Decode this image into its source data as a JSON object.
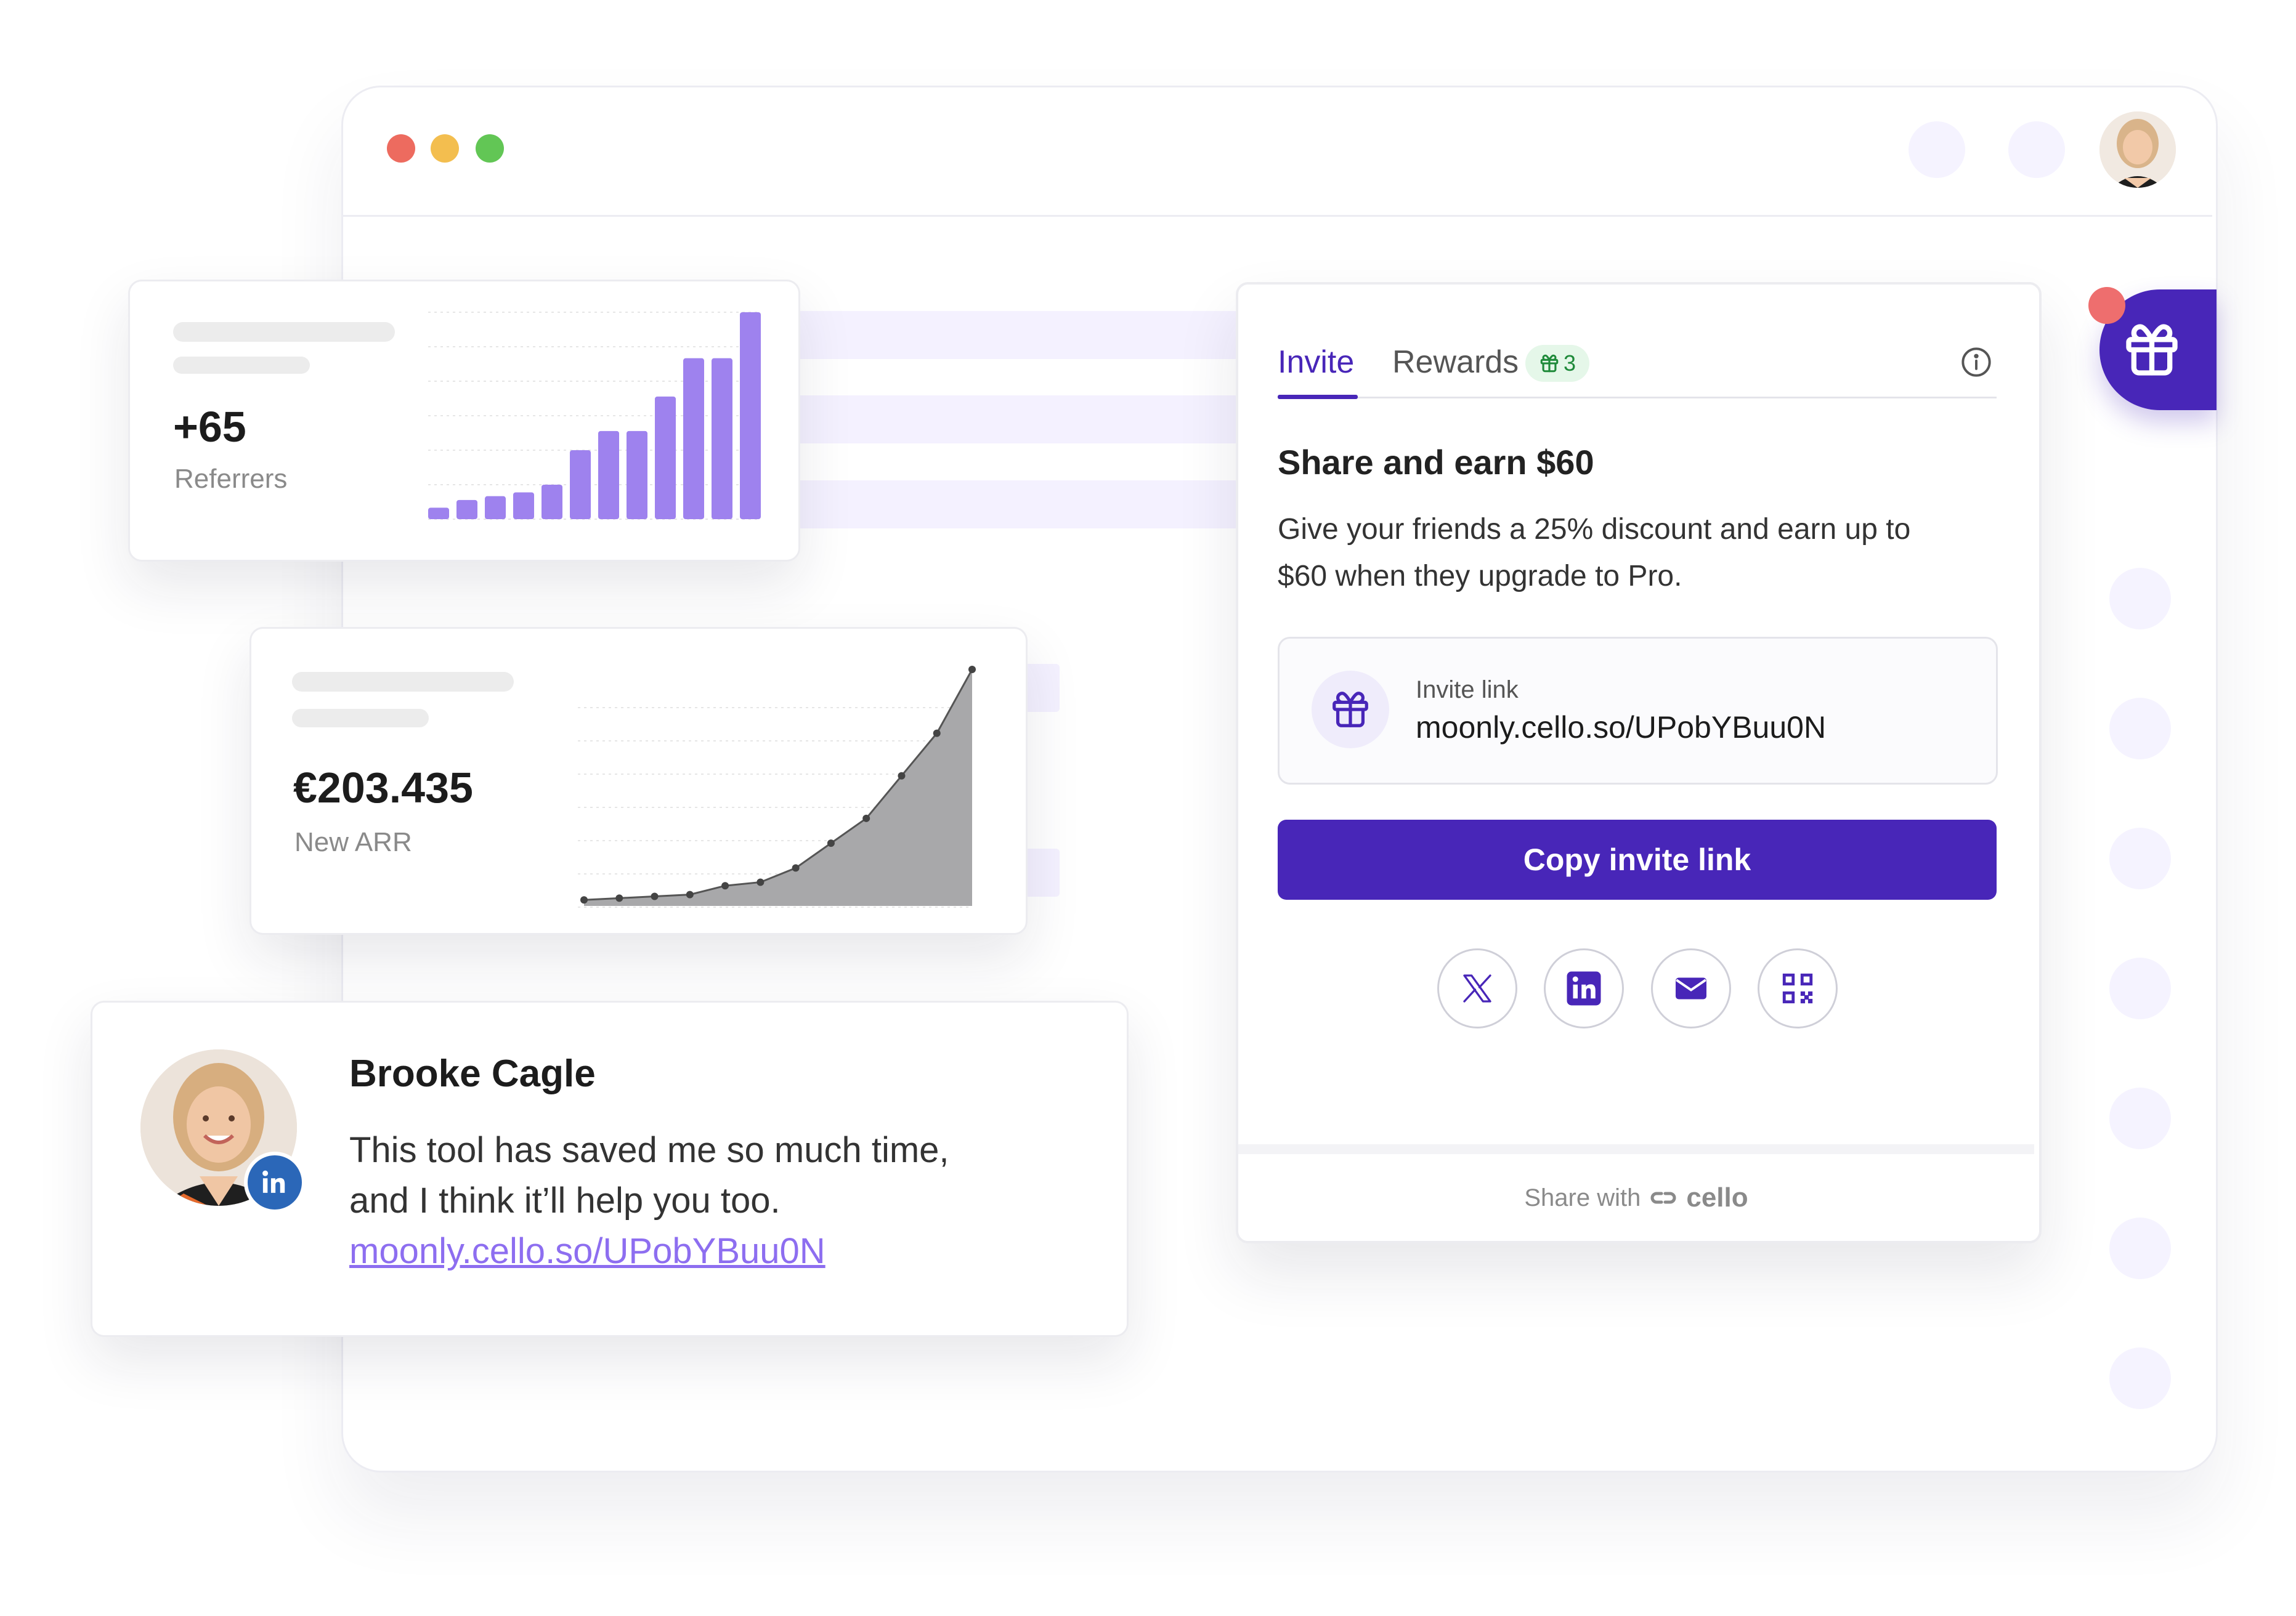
{
  "window": {
    "traffic_lights": {
      "close": "#ed6b5f",
      "minimize": "#f3be4f",
      "maximize": "#62c655"
    }
  },
  "referrers_card": {
    "value": "+65",
    "label": "Referrers",
    "chart_data": {
      "type": "bar",
      "values": [
        3,
        5,
        6,
        7,
        9,
        18,
        23,
        23,
        32,
        42,
        42,
        54
      ],
      "color": "#9e82ee"
    }
  },
  "arr_card": {
    "value": "€203.435",
    "label": "New ARR",
    "chart_data": {
      "type": "area",
      "values": [
        1,
        1.5,
        2,
        2.5,
        5,
        6,
        10,
        17,
        24,
        36,
        48,
        66
      ],
      "fill": "#a8a8aa",
      "line": "#555555"
    }
  },
  "widget": {
    "tabs": [
      {
        "label": "Invite",
        "active": true
      },
      {
        "label": "Rewards",
        "active": false,
        "badge": "3"
      }
    ],
    "title": "Share and earn $60",
    "description_line1": "Give your friends a 25% discount and earn up to",
    "description_line2": "$60 when they upgrade to Pro.",
    "invite_link_label": "Invite link",
    "invite_link_value": "moonly.cello.so/UPobYBuu0N",
    "copy_button": "Copy invite link",
    "share_options": [
      "x-icon",
      "linkedin-icon",
      "email-icon",
      "qr-code-icon"
    ],
    "footer_text": "Share with",
    "footer_brand": "cello",
    "accent_color": "#4826b8"
  },
  "testimonial": {
    "name": "Brooke Cagle",
    "message_line1": "This tool has saved me so much time,",
    "message_line2": "and I think it’ll help you too.",
    "link": "moonly.cello.so/UPobYBuu0N"
  }
}
